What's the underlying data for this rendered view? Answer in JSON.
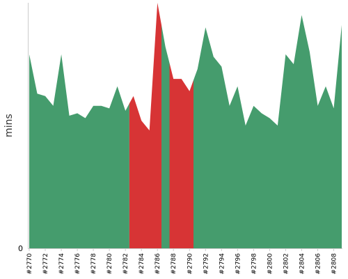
{
  "chart_data": {
    "type": "area",
    "ylabel": "mins",
    "yticks": [
      "0"
    ],
    "ylim": [
      0,
      100
    ],
    "colors": {
      "pass": "#459c6d",
      "fail": "#d73435",
      "axis": "#cccccc"
    },
    "builds": [
      {
        "x": "#2770",
        "y": 79,
        "status": "pass"
      },
      {
        "x": "#2771",
        "y": 63,
        "status": "pass"
      },
      {
        "x": "#2772",
        "y": 62,
        "status": "pass"
      },
      {
        "x": "#2773",
        "y": 58,
        "status": "pass"
      },
      {
        "x": "#2774",
        "y": 79,
        "status": "pass"
      },
      {
        "x": "#2775",
        "y": 54,
        "status": "pass"
      },
      {
        "x": "#2776",
        "y": 55,
        "status": "pass"
      },
      {
        "x": "#2777",
        "y": 53,
        "status": "pass"
      },
      {
        "x": "#2778",
        "y": 58,
        "status": "pass"
      },
      {
        "x": "#2779",
        "y": 58,
        "status": "pass"
      },
      {
        "x": "#2780",
        "y": 57,
        "status": "pass"
      },
      {
        "x": "#2781",
        "y": 66,
        "status": "pass"
      },
      {
        "x": "#2782",
        "y": 56,
        "status": "pass"
      },
      {
        "x": "#2783",
        "y": 62,
        "status": "fail"
      },
      {
        "x": "#2784",
        "y": 52,
        "status": "fail"
      },
      {
        "x": "#2785",
        "y": 48,
        "status": "fail"
      },
      {
        "x": "#2786",
        "y": 100,
        "status": "fail"
      },
      {
        "x": "#2787",
        "y": 82,
        "status": "pass"
      },
      {
        "x": "#2788",
        "y": 69,
        "status": "fail"
      },
      {
        "x": "#2789",
        "y": 69,
        "status": "fail"
      },
      {
        "x": "#2790",
        "y": 64,
        "status": "fail"
      },
      {
        "x": "#2791",
        "y": 73,
        "status": "pass"
      },
      {
        "x": "#2792",
        "y": 90,
        "status": "pass"
      },
      {
        "x": "#2793",
        "y": 78,
        "status": "pass"
      },
      {
        "x": "#2794",
        "y": 74,
        "status": "pass"
      },
      {
        "x": "#2795",
        "y": 58,
        "status": "pass"
      },
      {
        "x": "#2796",
        "y": 66,
        "status": "pass"
      },
      {
        "x": "#2797",
        "y": 50,
        "status": "pass"
      },
      {
        "x": "#2798",
        "y": 58,
        "status": "pass"
      },
      {
        "x": "#2799",
        "y": 55,
        "status": "pass"
      },
      {
        "x": "#2800",
        "y": 53,
        "status": "pass"
      },
      {
        "x": "#2801",
        "y": 50,
        "status": "pass"
      },
      {
        "x": "#2802",
        "y": 79,
        "status": "pass"
      },
      {
        "x": "#2803",
        "y": 75,
        "status": "pass"
      },
      {
        "x": "#2804",
        "y": 95,
        "status": "pass"
      },
      {
        "x": "#2805",
        "y": 80,
        "status": "pass"
      },
      {
        "x": "#2806",
        "y": 58,
        "status": "pass"
      },
      {
        "x": "#2807",
        "y": 66,
        "status": "pass"
      },
      {
        "x": "#2808",
        "y": 57,
        "status": "pass"
      },
      {
        "x": "#2809",
        "y": 91,
        "status": "pass"
      }
    ],
    "xtick_labels": [
      "#2770",
      "#2772",
      "#2774",
      "#2776",
      "#2778",
      "#2780",
      "#2782",
      "#2784",
      "#2786",
      "#2788",
      "#2790",
      "#2792",
      "#2794",
      "#2796",
      "#2798",
      "#2800",
      "#2802",
      "#2804",
      "#2806",
      "#2808"
    ]
  }
}
